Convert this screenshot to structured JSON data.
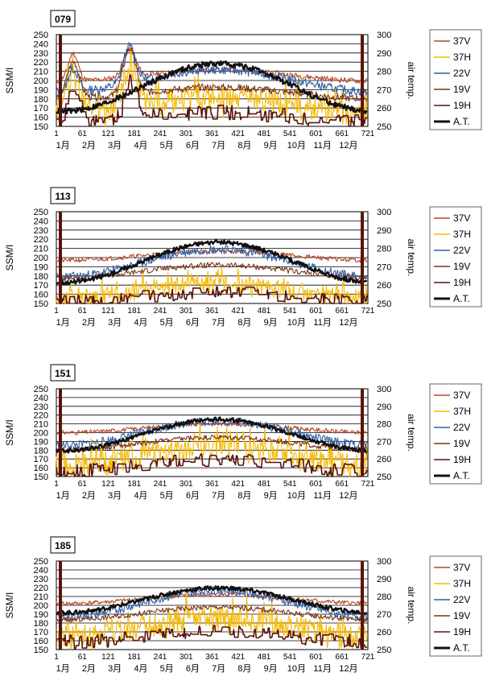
{
  "colors": {
    "37V": "#b5482a",
    "37H": "#f5b800",
    "22V": "#2f5fa8",
    "19V": "#7a3318",
    "19H": "#5a1408",
    "A.T.": "#111111"
  },
  "chart_data": [
    {
      "type": "line",
      "title": "079",
      "ylabel": "SSM/I",
      "y2label": "air temp.",
      "ylim": [
        150,
        250
      ],
      "y2lim": [
        250,
        300
      ],
      "yticks": [
        "250",
        "240",
        "230",
        "220",
        "210",
        "200",
        "190",
        "180",
        "170",
        "160",
        "150"
      ],
      "y2ticks": [
        "300",
        "290",
        "280",
        "270",
        "260",
        "250"
      ],
      "xticks": [
        "1",
        "61",
        "121",
        "181",
        "241",
        "301",
        "361",
        "421",
        "481",
        "541",
        "601",
        "661",
        "721"
      ],
      "months": [
        "1月",
        "2月",
        "3月",
        "4月",
        "5月",
        "6月",
        "7月",
        "8月",
        "9月",
        "10月",
        "11月",
        "12月"
      ],
      "grid": true,
      "legend": "right",
      "series": [
        {
          "name": "37V",
          "key": "37V",
          "axis": "left",
          "profile": {
            "base": 203,
            "amp": 12,
            "noise": 3,
            "bumps": [
              [
                40,
                30,
                8
              ],
              [
                170,
                30,
                10
              ]
            ],
            "seed": 11
          }
        },
        {
          "name": "37H",
          "key": "37H",
          "axis": "left",
          "profile": {
            "base": 168,
            "amp": 18,
            "noise": 14,
            "bumps": [
              [
                40,
                40,
                12
              ],
              [
                170,
                45,
                12
              ]
            ],
            "seed": 12,
            "floor": 150,
            "spiky": true
          }
        },
        {
          "name": "22V",
          "key": "22V",
          "axis": "left",
          "profile": {
            "base": 195,
            "amp": 24,
            "noise": 5,
            "bumps": [
              [
                40,
                25,
                8
              ],
              [
                170,
                40,
                10
              ]
            ],
            "seed": 13
          }
        },
        {
          "name": "19V",
          "key": "19V",
          "axis": "left",
          "profile": {
            "base": 184,
            "amp": 12,
            "noise": 4,
            "bumps": [
              [
                40,
                40,
                10
              ],
              [
                170,
                50,
                10
              ]
            ],
            "seed": 14
          }
        },
        {
          "name": "19H",
          "key": "19H",
          "axis": "left",
          "profile": {
            "base": 158,
            "amp": 10,
            "noise": 8,
            "bumps": [
              [
                40,
                35,
                10
              ],
              [
                170,
                40,
                10
              ]
            ],
            "seed": 15,
            "floor": 150,
            "blocky": true
          }
        },
        {
          "name": "A.T.",
          "key": "A.T.",
          "axis": "right",
          "profile": {
            "base": 266,
            "amp": 26,
            "noise": 1.5,
            "bumps": [],
            "seed": 16
          }
        }
      ]
    },
    {
      "type": "line",
      "title": "113",
      "ylabel": "SSM/I",
      "y2label": "air temp.",
      "ylim": [
        150,
        250
      ],
      "y2lim": [
        250,
        300
      ],
      "yticks": [
        "250",
        "240",
        "230",
        "220",
        "210",
        "200",
        "190",
        "180",
        "170",
        "160",
        "150"
      ],
      "y2ticks": [
        "300",
        "290",
        "280",
        "270",
        "260",
        "250"
      ],
      "xticks": [
        "1",
        "61",
        "121",
        "181",
        "241",
        "301",
        "361",
        "421",
        "481",
        "541",
        "601",
        "661",
        "721"
      ],
      "months": [
        "1月",
        "2月",
        "3月",
        "4月",
        "5月",
        "6月",
        "7月",
        "8月",
        "9月",
        "10月",
        "11月",
        "12月"
      ],
      "grid": true,
      "legend": "right",
      "series": [
        {
          "name": "37V",
          "key": "37V",
          "axis": "left",
          "profile": {
            "base": 200,
            "amp": 10,
            "noise": 2.5,
            "bumps": [],
            "seed": 21
          }
        },
        {
          "name": "37H",
          "key": "37H",
          "axis": "left",
          "profile": {
            "base": 160,
            "amp": 16,
            "noise": 10,
            "bumps": [],
            "seed": 22,
            "floor": 150,
            "spiky": true
          }
        },
        {
          "name": "22V",
          "key": "22V",
          "axis": "left",
          "profile": {
            "base": 188,
            "amp": 30,
            "noise": 5,
            "bumps": [],
            "seed": 23
          }
        },
        {
          "name": "19V",
          "key": "19V",
          "axis": "left",
          "profile": {
            "base": 182,
            "amp": 14,
            "noise": 3,
            "bumps": [],
            "seed": 24
          }
        },
        {
          "name": "19H",
          "key": "19H",
          "axis": "left",
          "profile": {
            "base": 155,
            "amp": 10,
            "noise": 7,
            "bumps": [],
            "seed": 25,
            "floor": 150,
            "blocky": true
          }
        },
        {
          "name": "A.T.",
          "key": "A.T.",
          "axis": "right",
          "profile": {
            "base": 268,
            "amp": 22,
            "noise": 1.2,
            "bumps": [],
            "seed": 26
          }
        }
      ]
    },
    {
      "type": "line",
      "title": "151",
      "ylabel": "SSM/I",
      "y2label": "air temp.",
      "ylim": [
        150,
        250
      ],
      "y2lim": [
        250,
        300
      ],
      "yticks": [
        "250",
        "240",
        "230",
        "220",
        "210",
        "200",
        "190",
        "180",
        "170",
        "160",
        "150"
      ],
      "y2ticks": [
        "300",
        "290",
        "280",
        "270",
        "260",
        "250"
      ],
      "xticks": [
        "1",
        "61",
        "121",
        "181",
        "241",
        "301",
        "361",
        "421",
        "481",
        "541",
        "601",
        "661",
        "721"
      ],
      "months": [
        "1月",
        "2月",
        "3月",
        "4月",
        "5月",
        "6月",
        "7月",
        "8月",
        "9月",
        "10月",
        "11月",
        "12月"
      ],
      "grid": true,
      "legend": "right",
      "series": [
        {
          "name": "37V",
          "key": "37V",
          "axis": "left",
          "profile": {
            "base": 203,
            "amp": 10,
            "noise": 2.5,
            "bumps": [],
            "seed": 31
          }
        },
        {
          "name": "37H",
          "key": "37H",
          "axis": "left",
          "profile": {
            "base": 170,
            "amp": 20,
            "noise": 14,
            "bumps": [],
            "seed": 32,
            "floor": 150,
            "spiky": true
          }
        },
        {
          "name": "22V",
          "key": "22V",
          "axis": "left",
          "profile": {
            "base": 194,
            "amp": 28,
            "noise": 5,
            "bumps": [],
            "seed": 33
          }
        },
        {
          "name": "19V",
          "key": "19V",
          "axis": "left",
          "profile": {
            "base": 185,
            "amp": 14,
            "noise": 3,
            "bumps": [],
            "seed": 34
          }
        },
        {
          "name": "19H",
          "key": "19H",
          "axis": "left",
          "profile": {
            "base": 160,
            "amp": 12,
            "noise": 8,
            "bumps": [],
            "seed": 35,
            "floor": 150,
            "blocky": true
          }
        },
        {
          "name": "A.T.",
          "key": "A.T.",
          "axis": "right",
          "profile": {
            "base": 270,
            "amp": 18,
            "noise": 1.2,
            "bumps": [],
            "seed": 36
          }
        }
      ]
    },
    {
      "type": "line",
      "title": "185",
      "ylabel": "SSM/I",
      "y2label": "air temp.",
      "ylim": [
        150,
        250
      ],
      "y2lim": [
        250,
        300
      ],
      "yticks": [
        "250",
        "240",
        "230",
        "220",
        "210",
        "200",
        "190",
        "180",
        "170",
        "160",
        "150"
      ],
      "y2ticks": [
        "300",
        "290",
        "280",
        "270",
        "260",
        "250"
      ],
      "xticks": [
        "1",
        "61",
        "121",
        "181",
        "241",
        "301",
        "361",
        "421",
        "481",
        "541",
        "601",
        "661",
        "721"
      ],
      "months": [
        "1月",
        "2月",
        "3月",
        "4月",
        "5月",
        "6月",
        "7月",
        "8月",
        "9月",
        "10月",
        "11月",
        "12月"
      ],
      "grid": true,
      "legend": "right",
      "series": [
        {
          "name": "37V",
          "key": "37V",
          "axis": "left",
          "profile": {
            "base": 205,
            "amp": 10,
            "noise": 2.5,
            "bumps": [],
            "seed": 41
          }
        },
        {
          "name": "37H",
          "key": "37H",
          "axis": "left",
          "profile": {
            "base": 170,
            "amp": 22,
            "noise": 14,
            "bumps": [],
            "seed": 42,
            "floor": 150,
            "spiky": true
          }
        },
        {
          "name": "22V",
          "key": "22V",
          "axis": "left",
          "profile": {
            "base": 196,
            "amp": 30,
            "noise": 5,
            "bumps": [],
            "seed": 43
          }
        },
        {
          "name": "19V",
          "key": "19V",
          "axis": "left",
          "profile": {
            "base": 188,
            "amp": 14,
            "noise": 3,
            "bumps": [],
            "seed": 44
          }
        },
        {
          "name": "19H",
          "key": "19H",
          "axis": "left",
          "profile": {
            "base": 162,
            "amp": 12,
            "noise": 8,
            "bumps": [],
            "seed": 45,
            "floor": 150,
            "blocky": true
          }
        },
        {
          "name": "A.T.",
          "key": "A.T.",
          "axis": "right",
          "profile": {
            "base": 275,
            "amp": 14,
            "noise": 1.2,
            "bumps": [],
            "seed": 46
          }
        }
      ]
    }
  ]
}
